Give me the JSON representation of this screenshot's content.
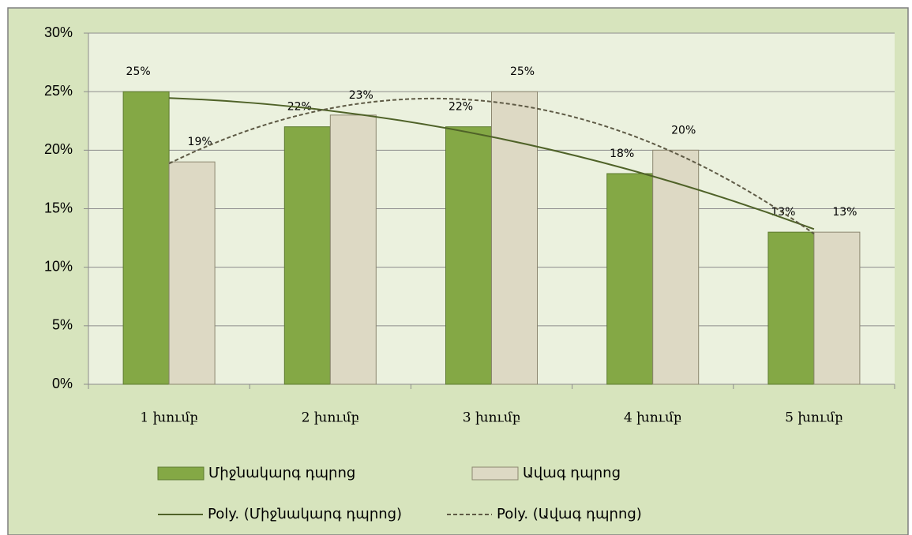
{
  "chart_data": {
    "type": "bar",
    "categories": [
      "1 խումբ",
      "2 խումբ",
      "3 խումբ",
      "4 խումբ",
      "5 խումբ"
    ],
    "series": [
      {
        "name": "Միջնակարգ դպրոց",
        "color": "#84a845",
        "values": [
          25,
          22,
          22,
          18,
          13
        ],
        "value_labels": [
          "25%",
          "22%",
          "22%",
          "18%",
          "13%"
        ],
        "trendline": {
          "name": "Poly. (Միջնակարգ դպրոց)",
          "order": 2,
          "style": "solid",
          "color": "#4f6228"
        }
      },
      {
        "name": "Ավագ դպրոց",
        "color": "#ddd9c4",
        "values": [
          19,
          23,
          25,
          20,
          13
        ],
        "value_labels": [
          "19%",
          "23%",
          "25%",
          "20%",
          "13%"
        ],
        "trendline": {
          "name": "Poly. (Ավագ դպրոց)",
          "order": 2,
          "style": "dashed",
          "color": "#5e5a45"
        }
      }
    ],
    "ylim": [
      0,
      30
    ],
    "yticks": [
      {
        "value": 0,
        "label": "0%"
      },
      {
        "value": 5,
        "label": "5%"
      },
      {
        "value": 10,
        "label": "10%"
      },
      {
        "value": 15,
        "label": "15%"
      },
      {
        "value": 20,
        "label": "20%"
      },
      {
        "value": 25,
        "label": "25%"
      },
      {
        "value": 30,
        "label": "30%"
      }
    ],
    "grid": true,
    "legend": "bottom"
  }
}
